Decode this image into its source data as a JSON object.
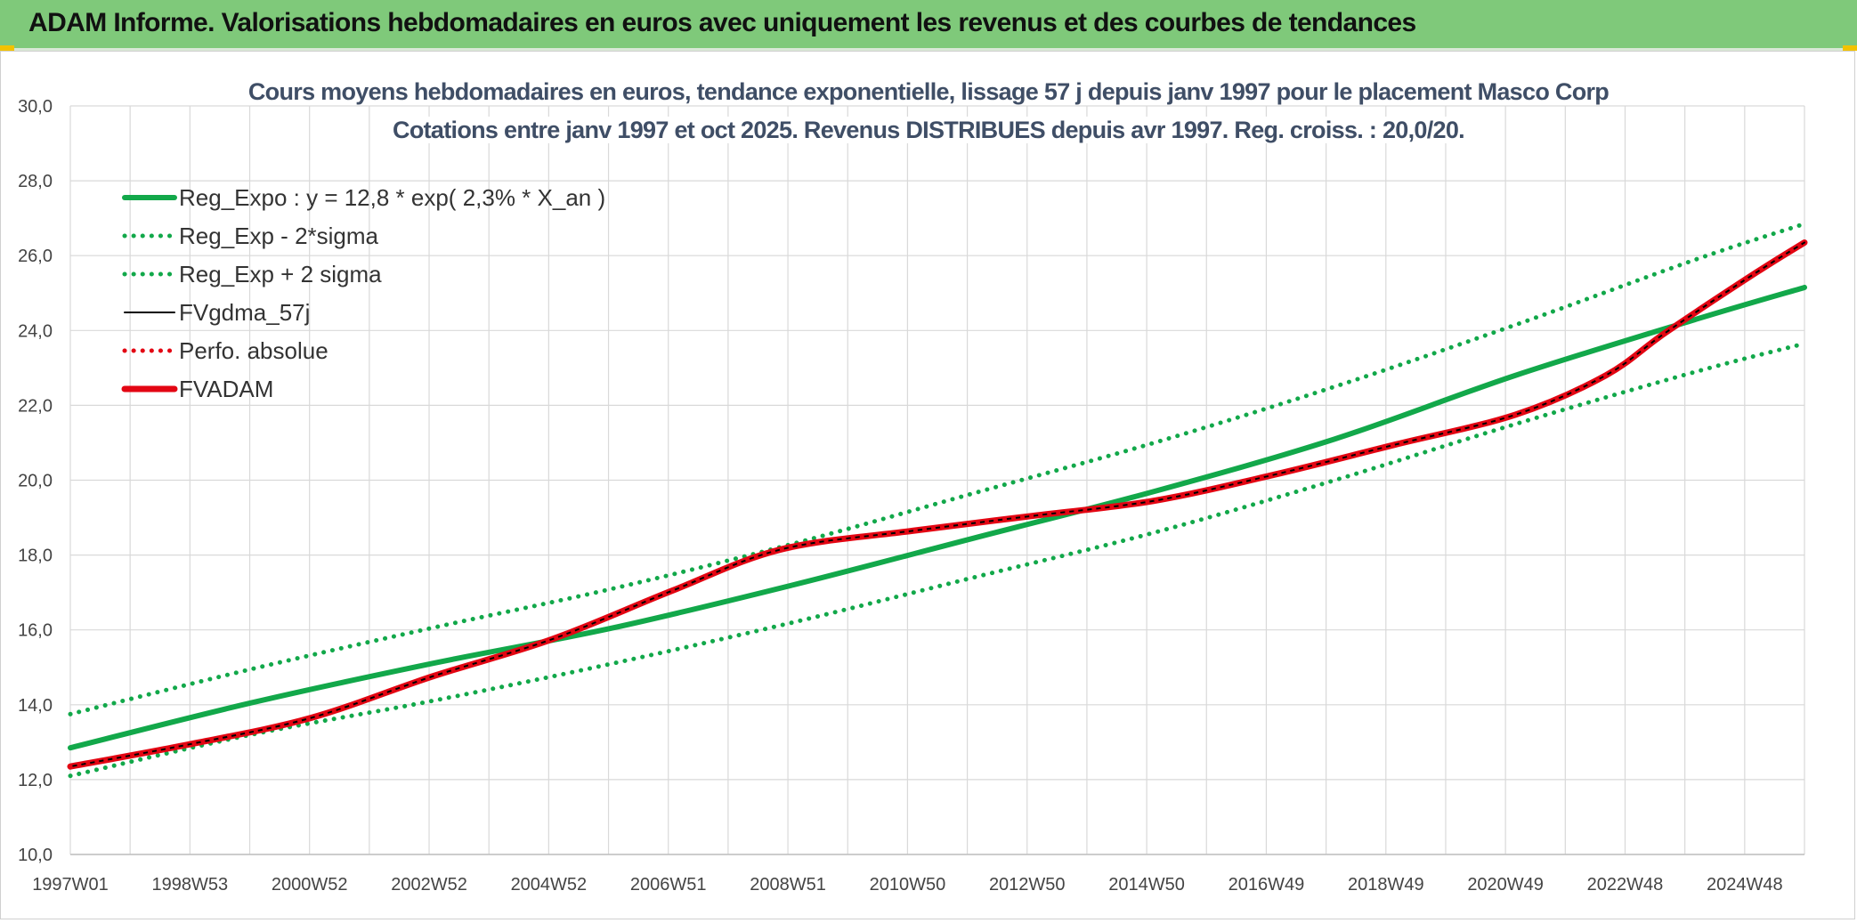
{
  "header": {
    "title": "ADAM Informe. Valorisations hebdomadaires en euros avec uniquement les revenus et des courbes de tendances"
  },
  "colors": {
    "header_bg": "#7fc97a",
    "reg_green": "#12a84a",
    "fvadam_red": "#e30613",
    "fvgdma_black": "#000000",
    "title_text": "#3f4e66"
  },
  "chart_data": {
    "type": "line",
    "title": "Cours moyens hebdomadaires en euros, tendance exponentielle, lissage 57 j depuis janv 1997 pour le placement Masco Corp",
    "subtitle": "Cotations entre janv 1997 et oct 2025. Revenus DISTRIBUES depuis avr 1997. Reg. croiss. : 20,0/20.",
    "xlabel": "",
    "ylabel": "",
    "ylim": [
      10,
      30
    ],
    "xlim": [
      1997.0,
      2025.8
    ],
    "yticks": [
      "10,0",
      "12,0",
      "14,0",
      "16,0",
      "18,0",
      "20,0",
      "22,0",
      "24,0",
      "26,0",
      "28,0",
      "30,0"
    ],
    "x_tick_labels": [
      "1997W01",
      "1998W53",
      "2000W52",
      "2002W52",
      "2004W52",
      "2006W51",
      "2008W51",
      "2010W50",
      "2012W50",
      "2014W50",
      "2016W49",
      "2018W49",
      "2020W49",
      "2022W48",
      "2024W48"
    ],
    "grid": true,
    "legend_position": "top-left",
    "series": [
      {
        "name": "Reg_Expo : y = 12,8 * exp( 2,3% *  X_an )",
        "style": "solid-thick",
        "color": "#12a84a",
        "x": [
          1997.0,
          2000.0,
          2003.0,
          2006.0,
          2009.0,
          2012.0,
          2015.0,
          2018.0,
          2021.0,
          2024.0,
          2025.8
        ],
        "y": [
          12.85,
          14.05,
          15.1,
          16.05,
          17.2,
          18.45,
          19.7,
          21.1,
          22.8,
          24.3,
          25.15
        ]
      },
      {
        "name": "Reg_Exp - 2*sigma",
        "style": "dotted",
        "color": "#12a84a",
        "x": [
          1997.0,
          2000.0,
          2003.0,
          2006.0,
          2009.0,
          2012.0,
          2015.0,
          2018.0,
          2021.0,
          2024.0,
          2025.8
        ],
        "y": [
          12.1,
          13.2,
          14.1,
          15.1,
          16.2,
          17.4,
          18.6,
          20.0,
          21.5,
          22.9,
          23.65
        ]
      },
      {
        "name": "Reg_Exp + 2 sigma",
        "style": "dotted",
        "color": "#12a84a",
        "x": [
          1997.0,
          2000.0,
          2003.0,
          2006.0,
          2009.0,
          2012.0,
          2015.0,
          2018.0,
          2021.0,
          2024.0,
          2025.8
        ],
        "y": [
          13.75,
          14.95,
          16.05,
          17.1,
          18.3,
          19.65,
          21.0,
          22.5,
          24.15,
          25.9,
          26.85
        ]
      },
      {
        "name": "FVgdma_57j",
        "style": "solid",
        "color": "#000000",
        "x": [
          1997.0,
          1999.0,
          2001.0,
          2003.0,
          2005.0,
          2007.0,
          2008.8,
          2011.0,
          2013.0,
          2015.0,
          2017.0,
          2019.0,
          2021.0,
          2022.5,
          2023.5,
          2025.0,
          2025.8
        ],
        "y": [
          12.35,
          12.95,
          13.65,
          14.75,
          15.75,
          17.05,
          18.15,
          18.65,
          19.05,
          19.45,
          20.15,
          20.95,
          21.75,
          22.8,
          23.95,
          25.55,
          26.35
        ]
      },
      {
        "name": "Perfo. absolue",
        "style": "dotted",
        "color": "#e30613",
        "x": [
          1997.0,
          1999.0,
          2001.0,
          2003.0,
          2005.0,
          2007.0,
          2008.8,
          2011.0,
          2013.0,
          2015.0,
          2017.0,
          2019.0,
          2021.0,
          2022.5,
          2023.5,
          2025.0,
          2025.8
        ],
        "y": [
          12.35,
          12.95,
          13.65,
          14.75,
          15.75,
          17.05,
          18.15,
          18.65,
          19.05,
          19.45,
          20.15,
          20.95,
          21.75,
          22.8,
          23.95,
          25.55,
          26.35
        ]
      },
      {
        "name": "FVADAM",
        "style": "solid-thick",
        "color": "#e30613",
        "x": [
          1997.0,
          1999.0,
          2001.0,
          2003.0,
          2005.0,
          2007.0,
          2008.8,
          2011.0,
          2013.0,
          2015.0,
          2017.0,
          2019.0,
          2021.0,
          2022.5,
          2023.5,
          2025.0,
          2025.8
        ],
        "y": [
          12.35,
          12.95,
          13.65,
          14.75,
          15.75,
          17.05,
          18.15,
          18.65,
          19.05,
          19.45,
          20.15,
          20.95,
          21.75,
          22.8,
          23.95,
          25.55,
          26.35
        ]
      }
    ]
  }
}
